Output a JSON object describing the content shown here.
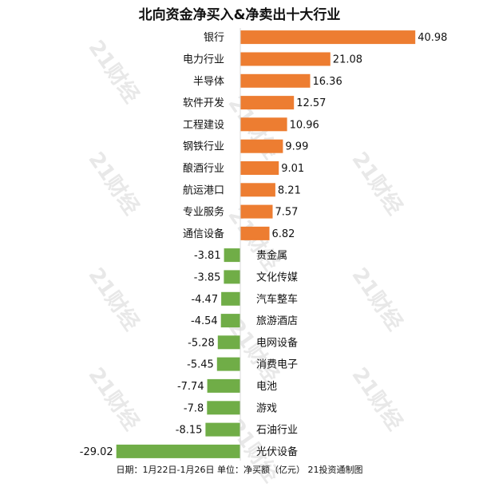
{
  "title": "北向资金净买入&净卖出十大行业",
  "footer": "日期：1月22日-1月26日 单位：净买额（亿元） 21投资通制图",
  "watermark": "21财经",
  "colors": {
    "positive": "#ED7D31",
    "negative": "#70AD47",
    "text": "#111111"
  },
  "chart_data": {
    "type": "bar",
    "orientation": "horizontal",
    "categories": [
      "银行",
      "电力行业",
      "半导体",
      "软件开发",
      "工程建设",
      "钢铁行业",
      "酿酒行业",
      "航运港口",
      "专业服务",
      "通信设备",
      "贵金属",
      "文化传媒",
      "汽车整车",
      "旅游酒店",
      "电网设备",
      "消费电子",
      "电池",
      "游戏",
      "石油行业",
      "光伏设备"
    ],
    "values": [
      40.98,
      21.08,
      16.36,
      12.57,
      10.96,
      9.99,
      9.01,
      8.21,
      7.57,
      6.82,
      -3.81,
      -3.85,
      -4.47,
      -4.54,
      -5.28,
      -5.45,
      -7.74,
      -7.8,
      -8.15,
      -29.02
    ],
    "value_labels": [
      "40.98",
      "21.08",
      "16.36",
      "12.57",
      "10.96",
      "9.99",
      "9.01",
      "8.21",
      "7.57",
      "6.82",
      "-3.81",
      "-3.85",
      "-4.47",
      "-4.54",
      "-5.28",
      "-5.45",
      "-7.74",
      "-7.8",
      "-8.15",
      "-29.02"
    ],
    "title": "北向资金净买入&净卖出十大行业",
    "xlabel": "",
    "ylabel": "",
    "grid": false,
    "legend": "none"
  }
}
